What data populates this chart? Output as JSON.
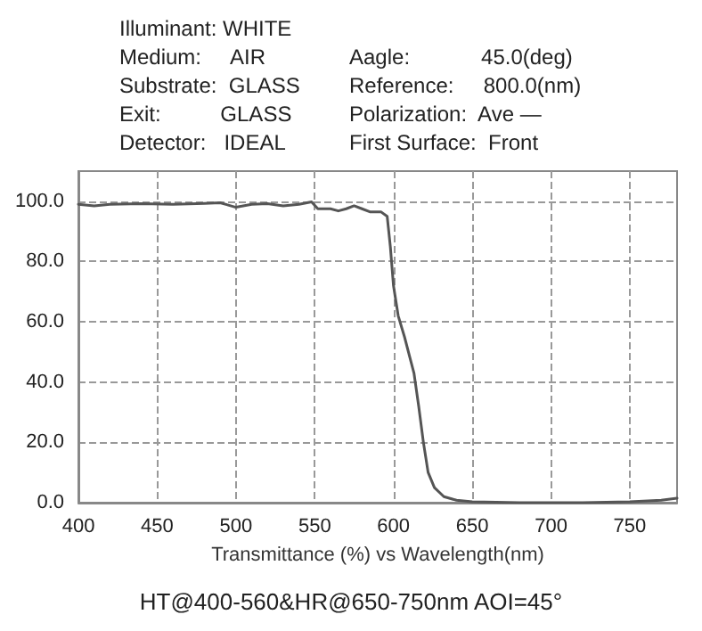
{
  "chart_data": {
    "type": "line",
    "title": "HT@400-560&HR@650-750nm AOI=45°",
    "xlabel": "Transmittance (%) vs Wavelength(nm)",
    "annotations": [
      "Illuminant: WHITE",
      "Medium:     AIR",
      "Substrate:  GLASS",
      "Exit:          GLASS",
      "Detector:   IDEAL",
      "Aagle:            45.0(deg)",
      "Reference:     800.0(nm)",
      "Polarization:  Ave —",
      "First Surface:  Front"
    ],
    "xlim": [
      400,
      780
    ],
    "xticks": [
      400,
      450,
      500,
      550,
      600,
      650,
      700,
      750
    ],
    "ylim": [
      0,
      110
    ],
    "yticks": [
      {
        "value": 0,
        "label": "0.0"
      },
      {
        "value": 20,
        "label": "20.0"
      },
      {
        "value": 40,
        "label": "40.0"
      },
      {
        "value": 60,
        "label": "60.0"
      },
      {
        "value": 80,
        "label": "80.0"
      },
      {
        "value": 100,
        "label": "100.0"
      }
    ],
    "grid": true,
    "marker": "none",
    "line_style": "solid",
    "series": [
      {
        "color": "#555555",
        "x": [
          400,
          410,
          420,
          440,
          460,
          480,
          490,
          500,
          510,
          520,
          530,
          540,
          548,
          552,
          560,
          565,
          570,
          575,
          580,
          585,
          592,
          596,
          598,
          600,
          603,
          607,
          611,
          613,
          616,
          619,
          622,
          626,
          632,
          640,
          650,
          680,
          720,
          750,
          770,
          780
        ],
        "values": [
          99,
          98.5,
          99,
          99.2,
          99,
          99.3,
          99.5,
          98,
          99,
          99.2,
          98.5,
          99,
          99.8,
          97.5,
          97.5,
          96.8,
          97.5,
          98.5,
          97.5,
          96.5,
          96.5,
          95,
          85,
          72,
          62,
          55,
          47,
          43,
          32,
          20,
          10,
          5,
          2,
          0.8,
          0.3,
          0,
          0,
          0.3,
          0.8,
          1.5
        ]
      }
    ]
  }
}
